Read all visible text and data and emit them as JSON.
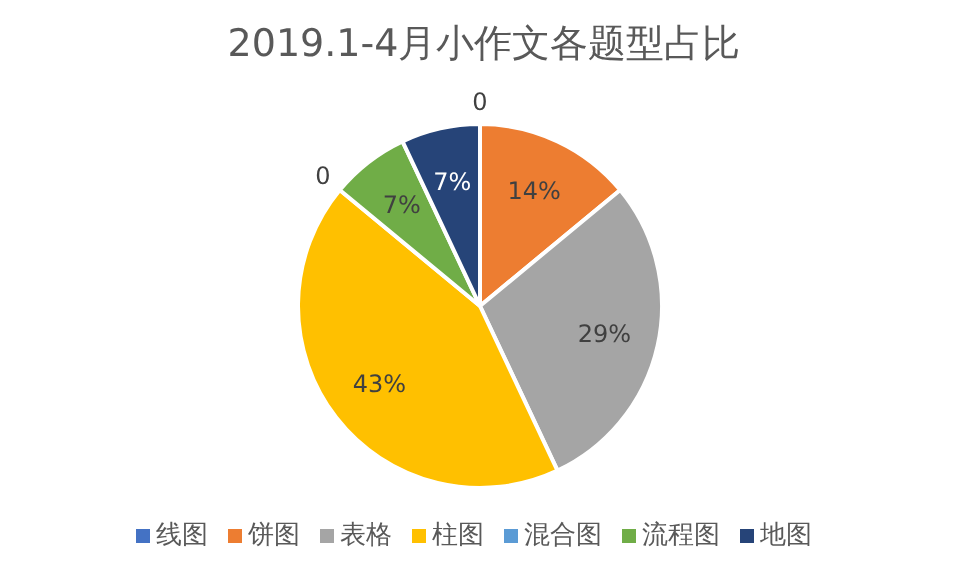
{
  "chart_data": {
    "type": "pie",
    "title": "2019.1-4月小作文各题型占比",
    "categories": [
      "线图",
      "饼图",
      "表格",
      "柱图",
      "混合图",
      "流程图",
      "地图"
    ],
    "values": [
      0,
      14,
      29,
      43,
      0,
      7,
      7
    ],
    "colors": [
      "#4472c4",
      "#ed7d31",
      "#a5a5a5",
      "#ffc000",
      "#5b9bd5",
      "#70ad47",
      "#264478"
    ],
    "value_labels": [
      "0",
      "14%",
      "29%",
      "43%",
      "0",
      "7%",
      "7%"
    ],
    "legend": "bottom"
  }
}
